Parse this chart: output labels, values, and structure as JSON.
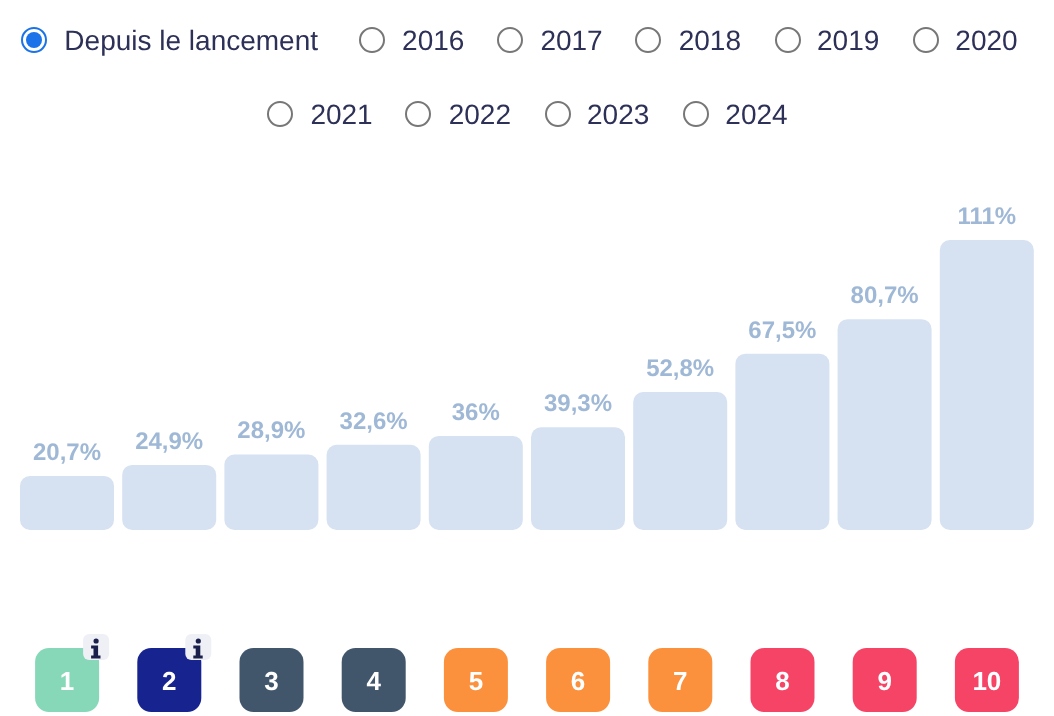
{
  "chart_data": {
    "type": "bar",
    "annotations": [
      "Depuis le lancement",
      "2016",
      "2017",
      "2018",
      "2019",
      "2020",
      "2021",
      "2022",
      "2023",
      "2024"
    ],
    "categories": [
      "1",
      "2",
      "3",
      "4",
      "5",
      "6",
      "7",
      "8",
      "9",
      "10"
    ],
    "values": [
      20.7,
      24.9,
      28.9,
      32.6,
      36,
      39.3,
      52.8,
      67.5,
      80.7,
      111
    ],
    "value_labels": [
      "20,7%",
      "24,9%",
      "28,9%",
      "32,6%",
      "36%",
      "39,3%",
      "52,8%",
      "67,5%",
      "80,7%",
      "111%"
    ],
    "color": "#d6e2f1"
  }
}
